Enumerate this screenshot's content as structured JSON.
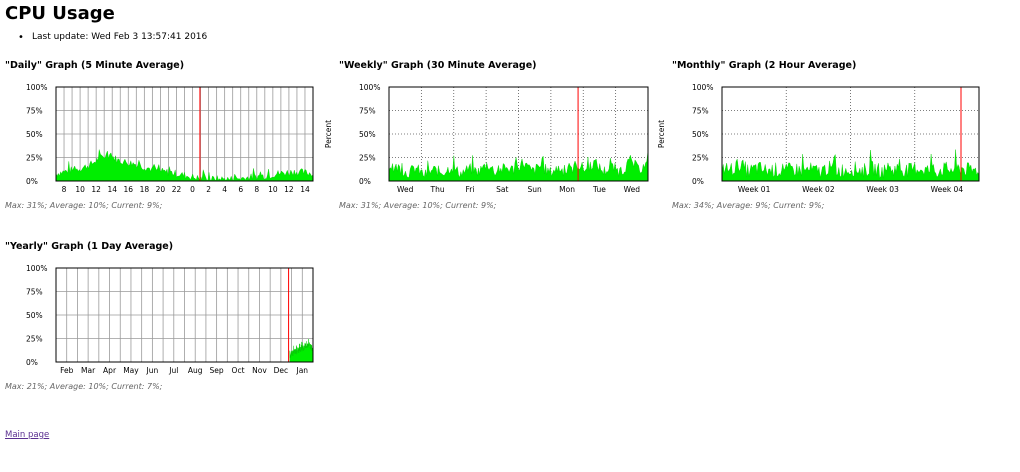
{
  "page": {
    "title": "CPU Usage",
    "last_update": "Last update: Wed Feb 3 13:57:41 2016",
    "main_link": "Main page"
  },
  "colors": {
    "fill": "#00ee00",
    "now_line": "#ff0000",
    "grid": "#888888",
    "frame": "#000000"
  },
  "graphs": [
    {
      "title": "\"Daily\" Graph (5 Minute Average)",
      "stats": "Max: 31%; Average: 10%; Current: 9%;",
      "ylabel": "",
      "yticks": [
        "100%",
        "75%",
        "50%",
        "25%",
        "0%"
      ],
      "xticks": [
        "8",
        "10",
        "12",
        "14",
        "16",
        "18",
        "20",
        "22",
        "0",
        "2",
        "4",
        "6",
        "8",
        "10",
        "12",
        "14"
      ],
      "grid_style": "solid",
      "now_fraction": 0.56,
      "data_start": 0.0,
      "data_end": 1.0,
      "profile": [
        8,
        10,
        12,
        14,
        18,
        25,
        28,
        22,
        20,
        18,
        15,
        12,
        10,
        9,
        7,
        5,
        3,
        2,
        2,
        2,
        2,
        3,
        4,
        5,
        6,
        8,
        9,
        10,
        9,
        8
      ],
      "noise": 4
    },
    {
      "title": "\"Weekly\" Graph (30 Minute Average)",
      "stats": "Max: 31%; Average: 10%; Current: 9%;",
      "ylabel": "Percent",
      "yticks": [
        "100%",
        "75%",
        "50%",
        "25%",
        "0%"
      ],
      "xticks": [
        "Wed",
        "Thu",
        "Fri",
        "Sat",
        "Sun",
        "Mon",
        "Tue",
        "Wed"
      ],
      "grid_style": "dotted",
      "now_fraction": 0.73,
      "data_start": 0.0,
      "data_end": 1.0,
      "profile": [
        10,
        15,
        8,
        14,
        6,
        12,
        9,
        15,
        8,
        13,
        10,
        18,
        9,
        14,
        12,
        20,
        10,
        16,
        9,
        14,
        8,
        18,
        12,
        20,
        10,
        15,
        9,
        22,
        12,
        18
      ],
      "noise": 6
    },
    {
      "title": "\"Monthly\" Graph (2 Hour Average)",
      "stats": "Max: 34%; Average: 9%; Current: 9%;",
      "ylabel": "Percent",
      "yticks": [
        "100%",
        "75%",
        "50%",
        "25%",
        "0%"
      ],
      "xticks": [
        "Week 01",
        "Week 02",
        "Week 03",
        "Week 04"
      ],
      "grid_style": "dotted",
      "now_fraction": 0.93,
      "data_start": 0.0,
      "data_end": 1.0,
      "profile": [
        14,
        12,
        18,
        10,
        14,
        11,
        12,
        10,
        13,
        11,
        12,
        10,
        14,
        11,
        12,
        13,
        11,
        14,
        10,
        12,
        13,
        11,
        14,
        12,
        10,
        13,
        12,
        14,
        11,
        12
      ],
      "noise": 8
    },
    {
      "title": "\"Yearly\" Graph (1 Day Average)",
      "stats": "Max: 21%; Average: 10%; Current: 7%;",
      "ylabel": "",
      "yticks": [
        "100%",
        "75%",
        "50%",
        "25%",
        "0%"
      ],
      "xticks": [
        "Feb",
        "Mar",
        "Apr",
        "May",
        "Jun",
        "Jul",
        "Aug",
        "Sep",
        "Oct",
        "Nov",
        "Dec",
        "Jan"
      ],
      "grid_style": "solid",
      "now_fraction": 0.905,
      "data_start": 0.91,
      "data_end": 1.0,
      "profile": [
        6,
        8,
        10,
        9,
        11,
        12,
        10,
        13,
        12,
        14,
        13,
        16,
        14,
        15,
        18,
        16,
        17,
        20,
        18,
        16,
        15,
        14
      ],
      "noise": 3
    }
  ]
}
